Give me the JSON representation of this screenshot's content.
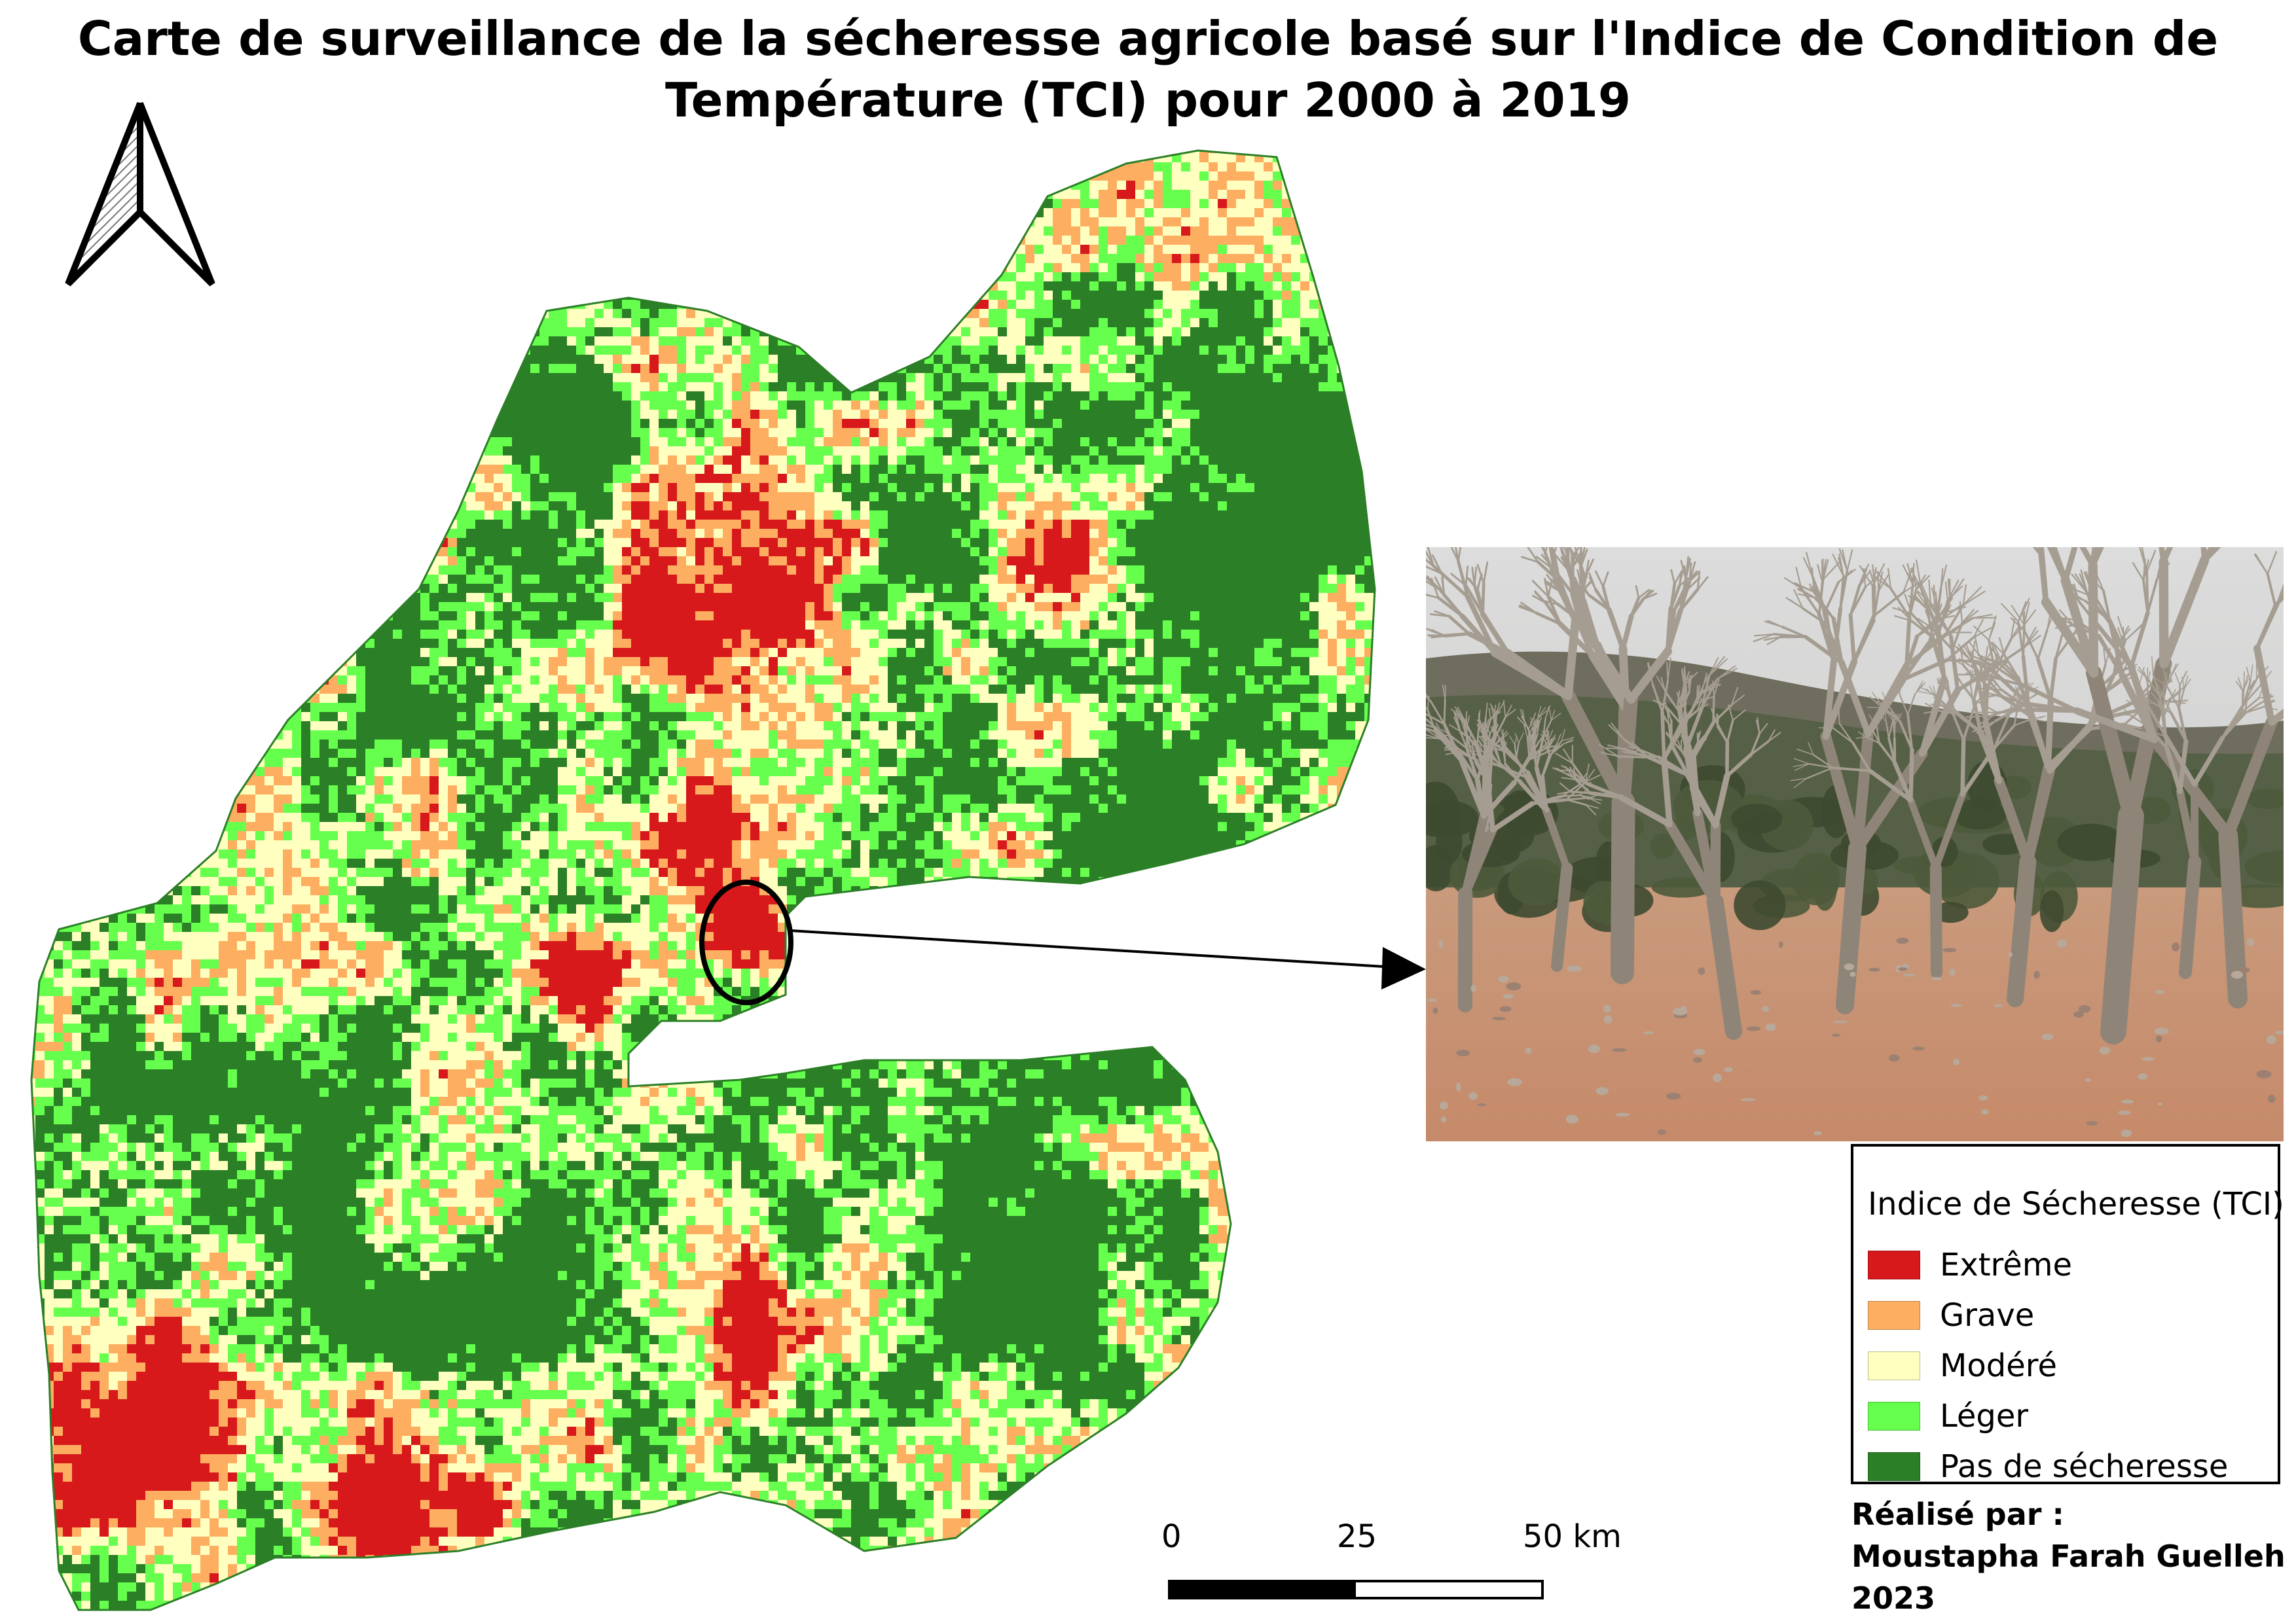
{
  "title": {
    "line1": "Carte de surveillance de la sécheresse agricole basé sur l'Indice de Condition de",
    "line2": "Température (TCI) pour 2000 à 2019"
  },
  "north_arrow": {
    "icon": "north-arrow-icon"
  },
  "legend": {
    "title": "Indice de Sécheresse (TCI)",
    "items": [
      {
        "label": "Extrême",
        "color": "#d7191c"
      },
      {
        "label": "Grave",
        "color": "#fdae61"
      },
      {
        "label": "Modéré",
        "color": "#ffffc0"
      },
      {
        "label": "Léger",
        "color": "#66ff4d"
      },
      {
        "label": "Pas de sécheresse",
        "color": "#2b7f27"
      }
    ]
  },
  "scale_bar": {
    "labels": [
      "0",
      "25",
      "50 km"
    ]
  },
  "credit": {
    "line1": "Réalisé par :",
    "line2": "Moustapha Farah Guelleh ;",
    "line3": "2023"
  },
  "photo": {
    "icon": "dead-forest-photo"
  }
}
